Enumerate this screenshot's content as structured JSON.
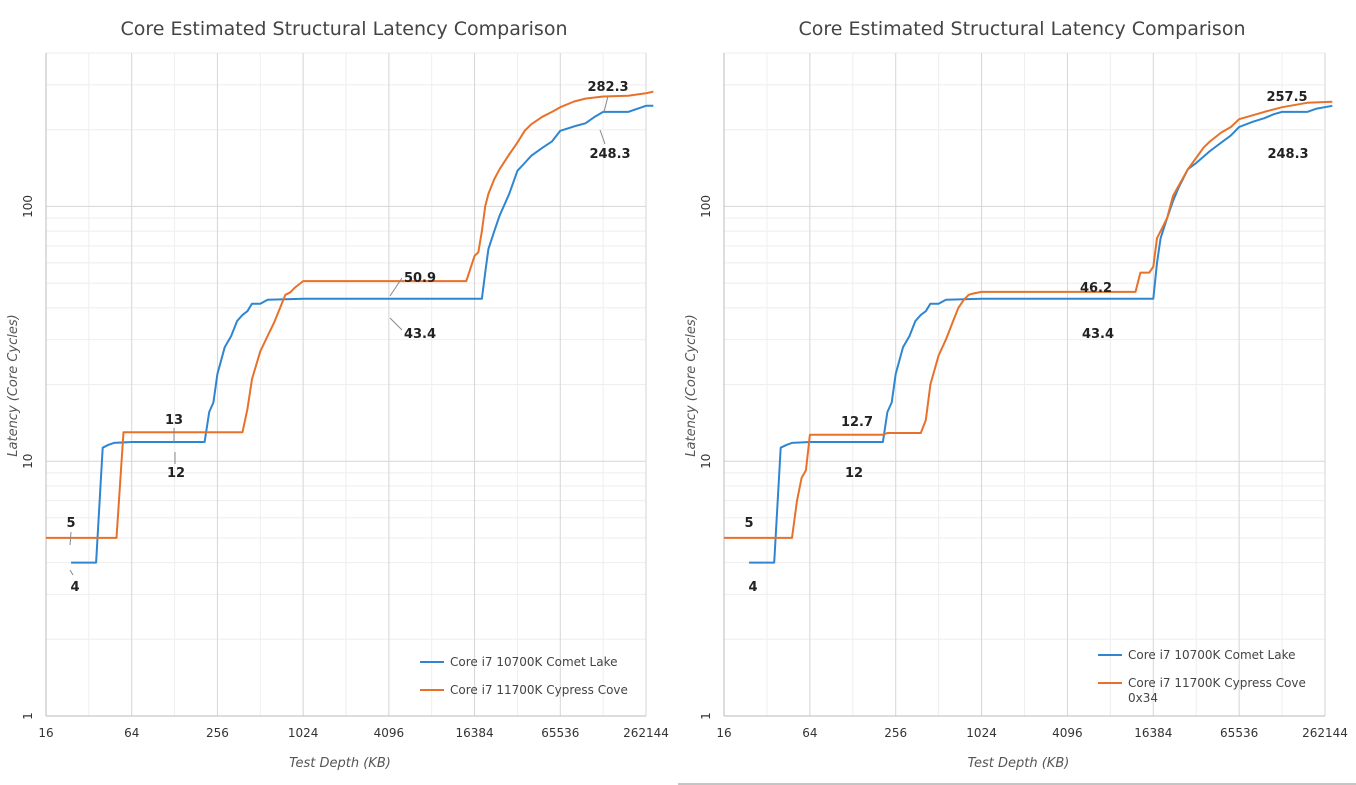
{
  "chart_data": [
    {
      "type": "line",
      "title": "Core Estimated Structural Latency Comparison",
      "xlabel": "Test Depth (KB)",
      "ylabel": "Latency (Core Cycles)",
      "xscale": "log2",
      "yscale": "log10",
      "xlim": [
        16,
        262144
      ],
      "ylim": [
        1,
        400
      ],
      "x_ticks": [
        "16",
        "64",
        "256",
        "1024",
        "4096",
        "16384",
        "65536",
        "262144"
      ],
      "y_ticks": [
        "1",
        "10",
        "100"
      ],
      "grid": true,
      "legend": "bottom-right",
      "series": [
        {
          "name": "Core i7 10700K Comet Lake",
          "color": "#2e86d1",
          "points": [
            [
              24,
              4
            ],
            [
              36,
              4
            ],
            [
              40,
              11.3
            ],
            [
              44,
              11.6
            ],
            [
              48,
              11.8
            ],
            [
              64,
              11.9
            ],
            [
              128,
              11.9
            ],
            [
              208,
              11.9
            ],
            [
              224,
              15.6
            ],
            [
              240,
              17
            ],
            [
              256,
              22
            ],
            [
              288,
              28
            ],
            [
              320,
              31
            ],
            [
              352,
              35.5
            ],
            [
              384,
              37.5
            ],
            [
              416,
              38.8
            ],
            [
              448,
              41.5
            ],
            [
              512,
              41.5
            ],
            [
              576,
              43
            ],
            [
              1024,
              43.4
            ],
            [
              4096,
              43.4
            ],
            [
              18432,
              43.4
            ],
            [
              19456,
              55
            ],
            [
              20480,
              68
            ],
            [
              22528,
              80
            ],
            [
              24576,
              92
            ],
            [
              28672,
              112
            ],
            [
              32768,
              138
            ],
            [
              36864,
              148
            ],
            [
              40960,
              158
            ],
            [
              49152,
              170
            ],
            [
              57344,
              180
            ],
            [
              65536,
              198
            ],
            [
              81920,
              206
            ],
            [
              98304,
              212
            ],
            [
              114688,
              225
            ],
            [
              131072,
              235
            ],
            [
              196608,
              235
            ],
            [
              262144,
              248.3
            ],
            [
              294912,
              248.3
            ]
          ]
        },
        {
          "name": "Core i7 11700K Cypress Cove",
          "color": "#e8712a",
          "points": [
            [
              16,
              5
            ],
            [
              50,
              5
            ],
            [
              56,
              13
            ],
            [
              64,
              13
            ],
            [
              128,
              13
            ],
            [
              256,
              13
            ],
            [
              384,
              13
            ],
            [
              416,
              16
            ],
            [
              448,
              21
            ],
            [
              512,
              27
            ],
            [
              576,
              31
            ],
            [
              640,
              35
            ],
            [
              768,
              45
            ],
            [
              832,
              46
            ],
            [
              896,
              48
            ],
            [
              1024,
              50.9
            ],
            [
              4096,
              50.9
            ],
            [
              14336,
              50.9
            ],
            [
              16384,
              64
            ],
            [
              17408,
              66
            ],
            [
              18432,
              80
            ],
            [
              19456,
              100
            ],
            [
              20480,
              112
            ],
            [
              22528,
              128
            ],
            [
              24576,
              140
            ],
            [
              28672,
              160
            ],
            [
              32768,
              178
            ],
            [
              36864,
              198
            ],
            [
              40960,
              210
            ],
            [
              49152,
              225
            ],
            [
              57344,
              235
            ],
            [
              65536,
              245
            ],
            [
              81920,
              258
            ],
            [
              98304,
              265
            ],
            [
              131072,
              270
            ],
            [
              196608,
              272
            ],
            [
              262144,
              278
            ],
            [
              294912,
              282.3
            ]
          ]
        }
      ],
      "annotations": [
        {
          "text": "5",
          "x": 24,
          "y": 5
        },
        {
          "text": "4",
          "x": 24,
          "y": 4
        },
        {
          "text": "13",
          "x": 160,
          "y": 13
        },
        {
          "text": "12",
          "x": 160,
          "y": 12
        },
        {
          "text": "50.9",
          "x": 4096,
          "y": 50.9
        },
        {
          "text": "43.4",
          "x": 4096,
          "y": 43.4
        },
        {
          "text": "282.3",
          "x": 196608,
          "y": 282.3
        },
        {
          "text": "248.3",
          "x": 196608,
          "y": 248.3
        }
      ]
    },
    {
      "type": "line",
      "title": "Core Estimated Structural Latency Comparison",
      "xlabel": "Test Depth (KB)",
      "ylabel": "Latency (Core Cycles)",
      "xscale": "log2",
      "yscale": "log10",
      "xlim": [
        16,
        262144
      ],
      "ylim": [
        1,
        400
      ],
      "x_ticks": [
        "16",
        "64",
        "256",
        "1024",
        "4096",
        "16384",
        "65536",
        "262144"
      ],
      "y_ticks": [
        "1",
        "10",
        "100"
      ],
      "grid": true,
      "legend": "bottom-right",
      "series": [
        {
          "name": "Core i7 10700K Comet Lake",
          "color": "#2e86d1",
          "points": [
            [
              24,
              4
            ],
            [
              36,
              4
            ],
            [
              40,
              11.3
            ],
            [
              44,
              11.6
            ],
            [
              48,
              11.8
            ],
            [
              64,
              11.9
            ],
            [
              128,
              11.9
            ],
            [
              208,
              11.9
            ],
            [
              224,
              15.6
            ],
            [
              240,
              17
            ],
            [
              256,
              22
            ],
            [
              288,
              28
            ],
            [
              320,
              31
            ],
            [
              352,
              35.5
            ],
            [
              384,
              37.5
            ],
            [
              416,
              38.8
            ],
            [
              448,
              41.5
            ],
            [
              512,
              41.5
            ],
            [
              576,
              43
            ],
            [
              1024,
              43.4
            ],
            [
              4096,
              43.4
            ],
            [
              16384,
              43.4
            ],
            [
              17408,
              60
            ],
            [
              18432,
              75
            ],
            [
              20480,
              90
            ],
            [
              22528,
              105
            ],
            [
              24576,
              118
            ],
            [
              28672,
              140
            ],
            [
              32768,
              148
            ],
            [
              40960,
              165
            ],
            [
              49152,
              178
            ],
            [
              57344,
              190
            ],
            [
              65536,
              205
            ],
            [
              81920,
              215
            ],
            [
              98304,
              222
            ],
            [
              114688,
              230
            ],
            [
              131072,
              235
            ],
            [
              196608,
              235
            ],
            [
              229376,
              242
            ],
            [
              294912,
              248.3
            ]
          ]
        },
        {
          "name": "Core i7 11700K Cypress Cove 0x34",
          "color": "#e8712a",
          "points": [
            [
              16,
              5
            ],
            [
              48,
              5
            ],
            [
              52,
              7
            ],
            [
              56,
              8.6
            ],
            [
              60,
              9.2
            ],
            [
              64,
              12.7
            ],
            [
              128,
              12.7
            ],
            [
              208,
              12.7
            ],
            [
              224,
              12.9
            ],
            [
              256,
              12.9
            ],
            [
              384,
              12.9
            ],
            [
              416,
              14.5
            ],
            [
              448,
              20
            ],
            [
              512,
              26
            ],
            [
              576,
              30
            ],
            [
              640,
              35
            ],
            [
              704,
              40
            ],
            [
              768,
              43
            ],
            [
              832,
              45
            ],
            [
              896,
              45.5
            ],
            [
              1024,
              46.2
            ],
            [
              4096,
              46.2
            ],
            [
              12288,
              46.2
            ],
            [
              13312,
              55
            ],
            [
              14336,
              55
            ],
            [
              15360,
              55
            ],
            [
              16384,
              58
            ],
            [
              17408,
              75
            ],
            [
              18432,
              80
            ],
            [
              20480,
              90
            ],
            [
              22528,
              110
            ],
            [
              24576,
              120
            ],
            [
              28672,
              140
            ],
            [
              32768,
              155
            ],
            [
              36864,
              170
            ],
            [
              40960,
              180
            ],
            [
              49152,
              195
            ],
            [
              57344,
              205
            ],
            [
              65536,
              220
            ],
            [
              81920,
              228
            ],
            [
              98304,
              235
            ],
            [
              131072,
              245
            ],
            [
              196608,
              255
            ],
            [
              294912,
              257.5
            ]
          ]
        }
      ],
      "annotations": [
        {
          "text": "5",
          "x": 24,
          "y": 5
        },
        {
          "text": "4",
          "x": 24,
          "y": 4
        },
        {
          "text": "12.7",
          "x": 160,
          "y": 12.7
        },
        {
          "text": "12",
          "x": 160,
          "y": 12
        },
        {
          "text": "46.2",
          "x": 8192,
          "y": 46.2
        },
        {
          "text": "43.4",
          "x": 8192,
          "y": 43.4
        },
        {
          "text": "257.5",
          "x": 196608,
          "y": 257.5
        },
        {
          "text": "248.3",
          "x": 196608,
          "y": 248.3
        }
      ]
    }
  ]
}
